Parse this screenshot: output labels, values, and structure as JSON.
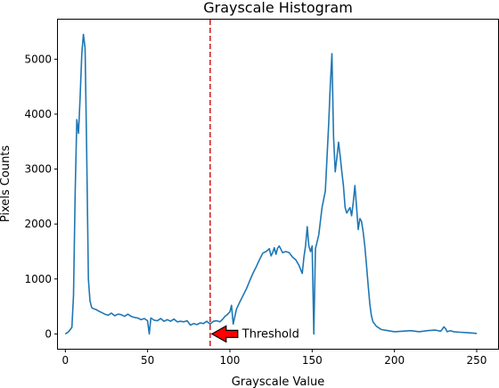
{
  "chart_data": {
    "type": "line",
    "title": "Grayscale Histogram",
    "xlabel": "Grayscale Value",
    "ylabel": "Pixels Counts",
    "xlim": [
      -4.5,
      263
    ],
    "ylim": [
      -270,
      5720
    ],
    "xticks": [
      0,
      50,
      100,
      150,
      200,
      250
    ],
    "yticks": [
      0,
      1000,
      2000,
      3000,
      4000,
      5000
    ],
    "grid": false,
    "series": [
      {
        "color": "#1f77b4",
        "x": [
          0,
          2,
          4,
          5,
          6,
          7,
          8,
          9,
          10,
          11,
          12,
          13,
          14,
          15,
          16,
          17,
          18,
          19,
          20,
          22,
          24,
          26,
          28,
          30,
          32,
          34,
          36,
          38,
          40,
          42,
          44,
          46,
          48,
          50,
          51,
          52,
          54,
          56,
          58,
          60,
          62,
          64,
          66,
          68,
          70,
          72,
          74,
          76,
          78,
          80,
          82,
          84,
          86,
          88,
          90,
          92,
          94,
          96,
          97,
          98,
          99,
          100,
          101,
          102,
          104,
          106,
          108,
          110,
          112,
          114,
          116,
          118,
          120,
          122,
          124,
          125,
          126,
          127,
          128,
          129,
          130,
          132,
          134,
          136,
          138,
          140,
          142,
          144,
          145,
          146,
          147,
          148,
          149,
          150,
          151,
          152,
          154,
          156,
          158,
          160,
          161,
          162,
          163,
          164,
          165,
          166,
          167,
          168,
          169,
          170,
          171,
          172,
          173,
          174,
          175,
          176,
          177,
          178,
          179,
          180,
          181,
          182,
          183,
          184,
          185,
          186,
          187,
          188,
          189,
          190,
          191,
          192,
          194,
          196,
          198,
          200,
          205,
          210,
          215,
          220,
          225,
          228,
          229,
          230,
          231,
          232,
          234,
          236,
          240,
          245,
          250
        ],
        "y": [
          0,
          40,
          120,
          700,
          2600,
          3900,
          3650,
          4300,
          5100,
          5450,
          5200,
          3300,
          1000,
          600,
          480,
          460,
          450,
          440,
          420,
          390,
          360,
          340,
          380,
          330,
          360,
          350,
          320,
          360,
          320,
          300,
          290,
          260,
          280,
          240,
          0,
          290,
          250,
          240,
          280,
          230,
          260,
          230,
          270,
          220,
          230,
          220,
          240,
          160,
          190,
          170,
          200,
          190,
          230,
          180,
          230,
          240,
          220,
          280,
          320,
          340,
          370,
          400,
          520,
          180,
          450,
          580,
          700,
          820,
          960,
          1100,
          1220,
          1350,
          1470,
          1500,
          1550,
          1420,
          1480,
          1570,
          1450,
          1560,
          1600,
          1480,
          1500,
          1480,
          1400,
          1350,
          1250,
          1100,
          1400,
          1600,
          1950,
          1600,
          1500,
          1600,
          0,
          1550,
          1800,
          2300,
          2600,
          3800,
          4500,
          5100,
          3600,
          2950,
          3200,
          3490,
          3250,
          2950,
          2700,
          2300,
          2200,
          2250,
          2300,
          2150,
          2400,
          2700,
          2300,
          1900,
          2100,
          2050,
          1850,
          1600,
          1250,
          900,
          550,
          330,
          220,
          180,
          140,
          120,
          100,
          80,
          70,
          60,
          50,
          40,
          50,
          60,
          40,
          60,
          70,
          50,
          80,
          130,
          100,
          40,
          60,
          40,
          30,
          20,
          10
        ]
      }
    ],
    "threshold": {
      "x": 88,
      "color": "#d62728",
      "style": "dashed"
    },
    "annotation": {
      "text": "Threshold",
      "x": 88,
      "y": 0,
      "arrow_color": "#ff0000"
    }
  }
}
